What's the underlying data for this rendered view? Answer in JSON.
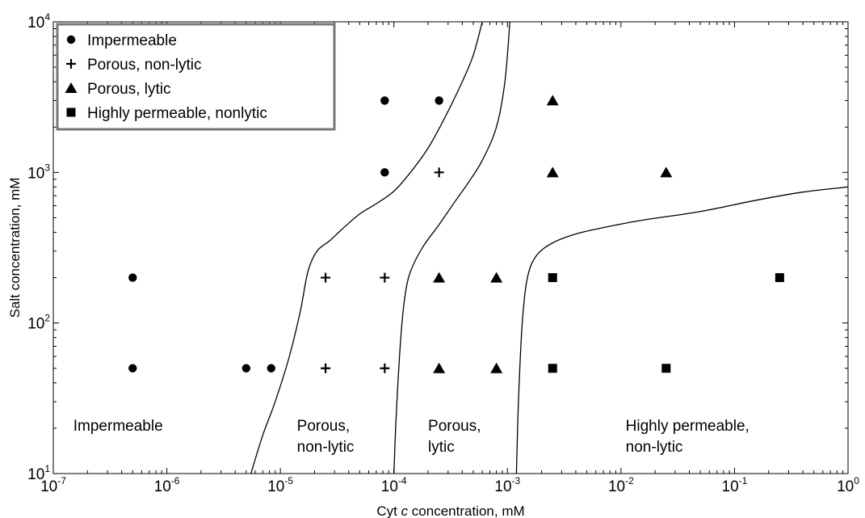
{
  "chart_data": {
    "type": "scatter",
    "xlabel": "Cyt c concentration, mM",
    "xlabel_parts": [
      "Cyt ",
      "c",
      " concentration, mM"
    ],
    "ylabel": "Salt concentration, mM",
    "xscale": "log",
    "yscale": "log",
    "xlim": [
      1e-07,
      1
    ],
    "ylim": [
      10,
      10000
    ],
    "x_ticks": [
      {
        "base": "10",
        "exp": "-7",
        "value": 1e-07
      },
      {
        "base": "10",
        "exp": "-6",
        "value": 1e-06
      },
      {
        "base": "10",
        "exp": "-5",
        "value": 1e-05
      },
      {
        "base": "10",
        "exp": "-4",
        "value": 0.0001
      },
      {
        "base": "10",
        "exp": "-3",
        "value": 0.001
      },
      {
        "base": "10",
        "exp": "-2",
        "value": 0.01
      },
      {
        "base": "10",
        "exp": "-1",
        "value": 0.1
      },
      {
        "base": "10",
        "exp": "0",
        "value": 1
      }
    ],
    "y_ticks": [
      {
        "base": "10",
        "exp": "1",
        "value": 10
      },
      {
        "base": "10",
        "exp": "2",
        "value": 100
      },
      {
        "base": "10",
        "exp": "3",
        "value": 1000
      },
      {
        "base": "10",
        "exp": "4",
        "value": 10000
      }
    ],
    "legend_position": "top-left",
    "series": [
      {
        "name": "Impermeable",
        "marker": "circle",
        "points": [
          {
            "x": 5e-07,
            "y": 200
          },
          {
            "x": 5e-07,
            "y": 50
          },
          {
            "x": 5e-06,
            "y": 50
          },
          {
            "x": 8.3e-06,
            "y": 50
          },
          {
            "x": 8.3e-05,
            "y": 3000
          },
          {
            "x": 8.3e-05,
            "y": 1000
          },
          {
            "x": 0.00025,
            "y": 3000
          }
        ]
      },
      {
        "name": "Porous, non-lytic",
        "marker": "plus",
        "points": [
          {
            "x": 2.5e-05,
            "y": 200
          },
          {
            "x": 8.3e-05,
            "y": 200
          },
          {
            "x": 2.5e-05,
            "y": 50
          },
          {
            "x": 8.3e-05,
            "y": 50
          },
          {
            "x": 0.00025,
            "y": 1000
          }
        ]
      },
      {
        "name": "Porous, lytic",
        "marker": "triangle",
        "points": [
          {
            "x": 0.00025,
            "y": 200
          },
          {
            "x": 0.0008,
            "y": 200
          },
          {
            "x": 0.00025,
            "y": 50
          },
          {
            "x": 0.0008,
            "y": 50
          },
          {
            "x": 0.0025,
            "y": 3000
          },
          {
            "x": 0.0025,
            "y": 1000
          },
          {
            "x": 0.025,
            "y": 1000
          }
        ]
      },
      {
        "name": "Highly permeable, nonlytic",
        "marker": "square",
        "points": [
          {
            "x": 0.0025,
            "y": 200
          },
          {
            "x": 0.0025,
            "y": 50
          },
          {
            "x": 0.025,
            "y": 50
          },
          {
            "x": 0.25,
            "y": 200
          }
        ]
      }
    ],
    "boundaries": [
      {
        "name": "impermeable-porous-nonlytic",
        "points": [
          [
            5.5e-06,
            10
          ],
          [
            7e-06,
            18
          ],
          [
            9e-06,
            30
          ],
          [
            1.2e-05,
            60
          ],
          [
            1.5e-05,
            120
          ],
          [
            1.75e-05,
            220
          ],
          [
            2.1e-05,
            300
          ],
          [
            2.7e-05,
            350
          ],
          [
            3.5e-05,
            420
          ],
          [
            5e-05,
            530
          ],
          [
            7e-05,
            620
          ],
          [
            0.0001,
            750
          ],
          [
            0.00014,
            1000
          ],
          [
            0.0002,
            1450
          ],
          [
            0.00028,
            2300
          ],
          [
            0.0004,
            4000
          ],
          [
            0.0005,
            6000
          ],
          [
            0.0006,
            10000
          ]
        ]
      },
      {
        "name": "porous-nonlytic-porous-lytic",
        "points": [
          [
            0.0001,
            10
          ],
          [
            0.000105,
            25
          ],
          [
            0.000115,
            80
          ],
          [
            0.000125,
            150
          ],
          [
            0.00014,
            220
          ],
          [
            0.00018,
            320
          ],
          [
            0.00025,
            450
          ],
          [
            0.00035,
            650
          ],
          [
            0.00045,
            850
          ],
          [
            0.0006,
            1200
          ],
          [
            0.0008,
            2000
          ],
          [
            0.00095,
            4000
          ],
          [
            0.00105,
            10000
          ]
        ]
      },
      {
        "name": "porous-lytic-highly-permeable",
        "points": [
          [
            0.0012,
            10
          ],
          [
            0.00125,
            30
          ],
          [
            0.00135,
            100
          ],
          [
            0.0015,
            200
          ],
          [
            0.0018,
            280
          ],
          [
            0.0025,
            340
          ],
          [
            0.004,
            390
          ],
          [
            0.007,
            430
          ],
          [
            0.015,
            480
          ],
          [
            0.05,
            550
          ],
          [
            0.15,
            650
          ],
          [
            0.4,
            740
          ],
          [
            1,
            800
          ]
        ]
      }
    ],
    "region_labels": [
      {
        "lines": [
          "Impermeable"
        ],
        "x": 1.5e-07,
        "y": 17
      },
      {
        "lines": [
          "Porous,",
          "non-lytic"
        ],
        "x": 1.4e-05,
        "y": 17
      },
      {
        "lines": [
          "Porous,",
          "lytic"
        ],
        "x": 0.0002,
        "y": 17
      },
      {
        "lines": [
          "Highly permeable,",
          "non-lytic"
        ],
        "x": 0.011,
        "y": 17
      }
    ],
    "legend_entries": [
      {
        "marker": "circle",
        "label": "Impermeable"
      },
      {
        "marker": "plus",
        "label": "Porous, non-lytic"
      },
      {
        "marker": "triangle",
        "label": "Porous, lytic"
      },
      {
        "marker": "square",
        "label": "Highly permeable, nonlytic"
      }
    ]
  }
}
